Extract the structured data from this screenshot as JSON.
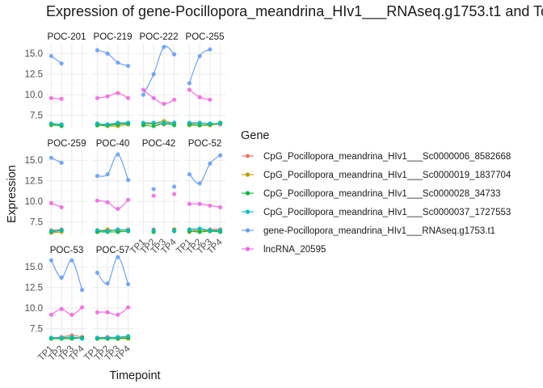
{
  "chart_data": {
    "type": "line",
    "title": "Expression of gene-Pocillopora_meandrina_HIv1___RNAseq.g1753.t1 and To",
    "xlabel": "Timepoint",
    "ylabel": "Expression",
    "categories": [
      "TP1",
      "TP2",
      "TP3",
      "TP4"
    ],
    "ylim": [
      6,
      16.2
    ],
    "yticks": [
      7.5,
      10.0,
      12.5,
      15.0
    ],
    "ytick_labels": [
      "7.5",
      "10.0",
      "12.5",
      "15.0"
    ],
    "grid": true,
    "facet_rows": 3,
    "facet_cols": 4,
    "legend": {
      "title": "Gene",
      "position": "right",
      "entries": [
        {
          "name": "CpG_Pocillopora_meandrina_HIv1___Sc0000006_8582668",
          "color": "#F8766D"
        },
        {
          "name": "CpG_Pocillopora_meandrina_HIv1___Sc0000019_1837704",
          "color": "#B79F00"
        },
        {
          "name": "CpG_Pocillopora_meandrina_HIv1___Sc0000028_34733",
          "color": "#00BA38"
        },
        {
          "name": "CpG_Pocillopora_meandrina_HIv1___Sc0000037_1727553",
          "color": "#00BFC4"
        },
        {
          "name": "gene-Pocillopora_meandrina_HIv1___RNAseq.g1753.t1",
          "color": "#619CFF"
        },
        {
          "name": "lncRNA_20595",
          "color": "#F564E3"
        }
      ]
    },
    "panels": [
      {
        "name": "POC-201",
        "series": [
          [
            6.5,
            6.4,
            null,
            null
          ],
          [
            6.3,
            6.3,
            null,
            null
          ],
          [
            6.4,
            6.2,
            null,
            null
          ],
          [
            6.5,
            6.4,
            null,
            null
          ],
          [
            14.7,
            13.8,
            null,
            null
          ],
          [
            9.6,
            9.5,
            null,
            null
          ]
        ]
      },
      {
        "name": "POC-219",
        "series": [
          [
            6.5,
            6.4,
            6.5,
            6.5
          ],
          [
            6.3,
            6.2,
            6.2,
            6.4
          ],
          [
            6.3,
            6.3,
            6.4,
            6.5
          ],
          [
            6.5,
            6.4,
            6.6,
            6.6
          ],
          [
            15.4,
            15.0,
            13.9,
            13.5
          ],
          [
            9.6,
            9.8,
            10.2,
            9.6
          ]
        ]
      },
      {
        "name": "POC-222",
        "series": [
          [
            6.5,
            6.5,
            6.4,
            6.6
          ],
          [
            6.4,
            6.5,
            6.8,
            6.5
          ],
          [
            6.3,
            6.2,
            6.5,
            6.3
          ],
          [
            6.6,
            6.6,
            6.6,
            6.6
          ],
          [
            10.0,
            12.5,
            15.8,
            14.9
          ],
          [
            10.6,
            9.6,
            8.9,
            9.4
          ]
        ]
      },
      {
        "name": "POC-255",
        "series": [
          [
            6.5,
            6.5,
            6.5,
            6.4
          ],
          [
            6.3,
            6.3,
            6.3,
            6.5
          ],
          [
            6.4,
            6.3,
            6.4,
            6.6
          ],
          [
            6.6,
            6.6,
            6.5,
            6.5
          ],
          [
            11.4,
            14.7,
            15.5,
            null
          ],
          [
            10.6,
            9.7,
            9.4,
            null
          ]
        ]
      },
      {
        "name": "POC-259",
        "series": [
          [
            6.5,
            6.6,
            null,
            null
          ],
          [
            6.2,
            6.3,
            null,
            null
          ],
          [
            6.3,
            6.5,
            null,
            null
          ],
          [
            6.4,
            6.5,
            null,
            null
          ],
          [
            15.3,
            14.7,
            null,
            null
          ],
          [
            9.8,
            9.3,
            null,
            null
          ]
        ]
      },
      {
        "name": "POC-40",
        "series": [
          [
            6.5,
            6.5,
            6.5,
            6.6
          ],
          [
            6.3,
            6.6,
            6.4,
            6.4
          ],
          [
            6.3,
            6.3,
            6.3,
            6.4
          ],
          [
            6.5,
            6.4,
            6.6,
            6.5
          ],
          [
            13.1,
            13.3,
            15.7,
            12.6
          ],
          [
            10.1,
            9.9,
            9.1,
            10.2
          ]
        ]
      },
      {
        "name": "POC-42",
        "series": [
          [
            null,
            6.6,
            null,
            6.6
          ],
          [
            null,
            6.4,
            null,
            6.6
          ],
          [
            null,
            6.3,
            null,
            6.4
          ],
          [
            null,
            6.5,
            null,
            6.5
          ],
          [
            null,
            11.5,
            null,
            11.8
          ],
          [
            null,
            10.7,
            null,
            10.9
          ]
        ]
      },
      {
        "name": "POC-52",
        "series": [
          [
            6.6,
            6.5,
            6.6,
            6.6
          ],
          [
            6.3,
            6.5,
            6.4,
            6.5
          ],
          [
            6.4,
            6.3,
            6.4,
            6.3
          ],
          [
            6.6,
            6.7,
            6.5,
            6.5
          ],
          [
            13.3,
            12.2,
            14.6,
            15.6
          ],
          [
            9.7,
            9.7,
            9.5,
            9.3
          ]
        ]
      },
      {
        "name": "POC-53",
        "series": [
          [
            6.4,
            6.5,
            6.7,
            6.5
          ],
          [
            6.3,
            6.3,
            6.4,
            6.4
          ],
          [
            6.3,
            6.3,
            6.3,
            6.4
          ],
          [
            6.4,
            6.4,
            6.5,
            6.3
          ],
          [
            15.8,
            13.7,
            15.8,
            12.2
          ],
          [
            9.2,
            9.9,
            9.2,
            10.1
          ]
        ]
      },
      {
        "name": "POC-57",
        "series": [
          [
            6.4,
            6.5,
            6.4,
            6.5
          ],
          [
            6.3,
            6.3,
            6.3,
            6.3
          ],
          [
            6.3,
            6.3,
            6.3,
            6.4
          ],
          [
            6.4,
            6.4,
            6.5,
            6.6
          ],
          [
            14.3,
            13.0,
            16.2,
            12.9
          ],
          [
            9.5,
            9.5,
            9.2,
            10.1
          ]
        ]
      }
    ]
  }
}
